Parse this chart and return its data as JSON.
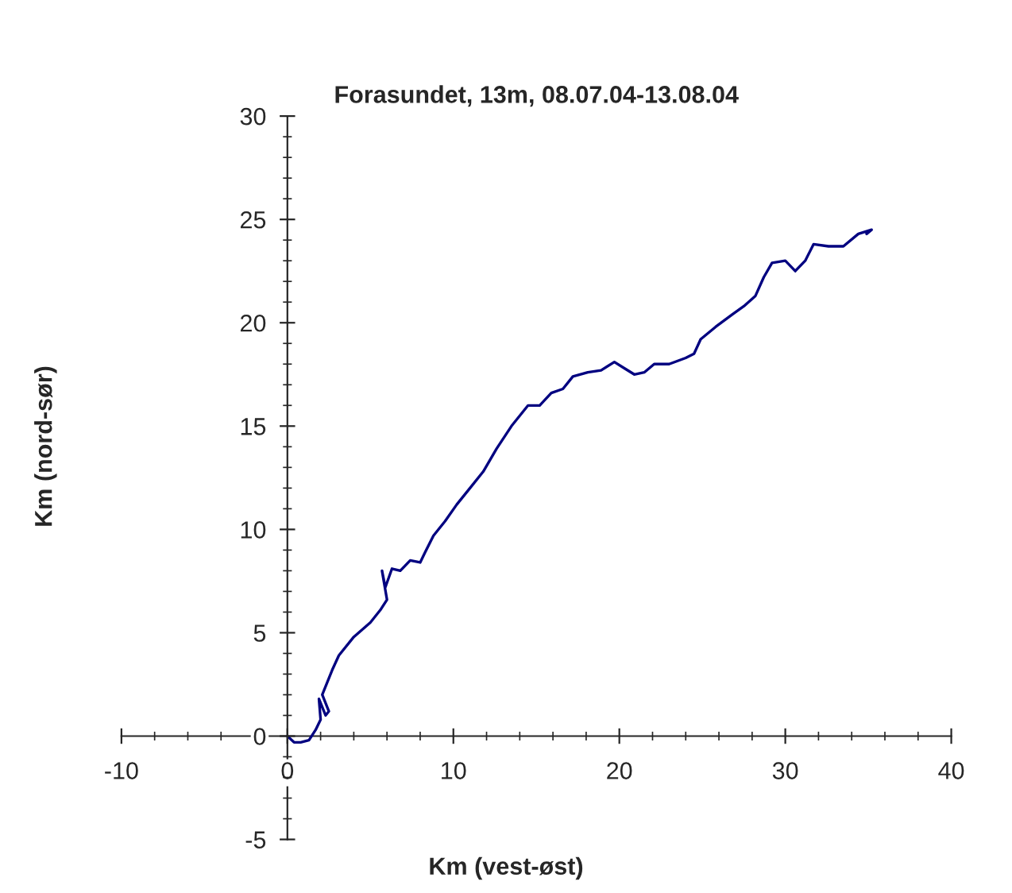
{
  "chart_data": {
    "type": "line",
    "title": "Forasundet, 13m, 08.07.04-13.08.04",
    "xlabel": "Km (vest-øst)",
    "ylabel": "Km (nord-sør)",
    "xlim": [
      -10,
      40
    ],
    "ylim": [
      -5,
      30
    ],
    "xticks": [
      -10,
      0,
      10,
      20,
      30,
      40
    ],
    "yticks": [
      -5,
      0,
      5,
      10,
      15,
      20,
      25,
      30
    ],
    "grid": false,
    "marker": "none",
    "line_style": "solid",
    "series": [
      {
        "color": "#000080",
        "x": [
          0,
          0.4,
          0.8,
          1.3,
          1.7,
          2.0,
          1.9,
          2.3,
          2.5,
          2.1,
          2.4,
          2.7,
          3.1,
          4.0,
          5.0,
          5.6,
          6.0,
          5.7,
          5.9,
          6.3,
          6.8,
          7.4,
          8.0,
          8.3,
          8.8,
          9.5,
          10.2,
          11.0,
          11.8,
          12.6,
          13.5,
          14.5,
          15.2,
          15.9,
          16.6,
          17.2,
          18.1,
          18.9,
          19.7,
          20.3,
          20.9,
          21.5,
          22.1,
          23.0,
          24.0,
          24.5,
          24.9,
          25.8,
          26.8,
          27.5,
          28.2,
          28.7,
          29.2,
          30.0,
          30.6,
          31.2,
          31.7,
          32.6,
          33.5,
          34.4,
          35.2,
          34.9
        ],
        "values": [
          0,
          -0.3,
          -0.3,
          -0.2,
          0.3,
          0.8,
          1.8,
          1.0,
          1.2,
          2.0,
          2.6,
          3.2,
          3.9,
          4.8,
          5.5,
          6.1,
          6.6,
          8.0,
          7.2,
          8.1,
          8.0,
          8.5,
          8.4,
          8.9,
          9.7,
          10.4,
          11.2,
          12.0,
          12.8,
          13.9,
          15.0,
          16.0,
          16.0,
          16.6,
          16.8,
          17.4,
          17.6,
          17.7,
          18.1,
          17.8,
          17.5,
          17.6,
          18.0,
          18.0,
          18.3,
          18.5,
          19.2,
          19.8,
          20.4,
          20.8,
          21.3,
          22.2,
          22.9,
          23.0,
          22.5,
          23.0,
          23.8,
          23.7,
          23.7,
          24.3,
          24.5,
          24.3
        ]
      }
    ]
  }
}
